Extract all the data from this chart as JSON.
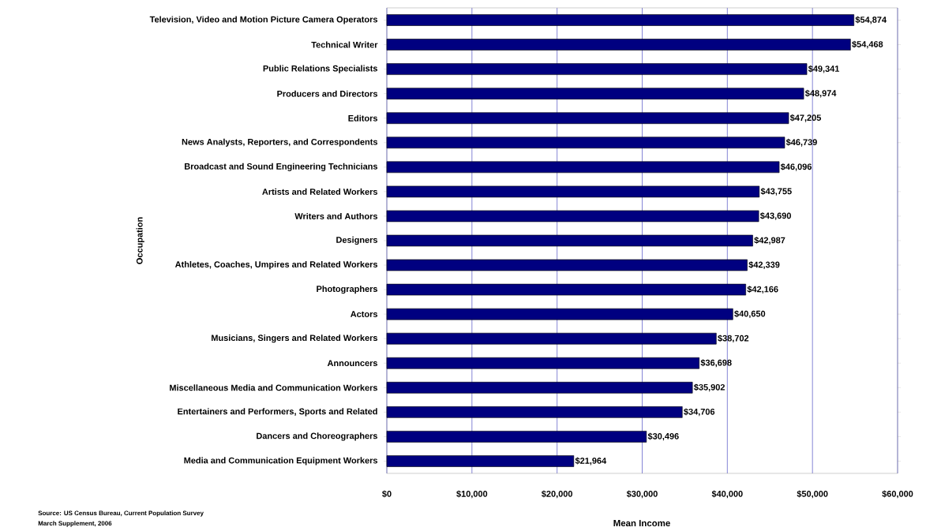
{
  "chart_data": {
    "type": "bar",
    "orientation": "horizontal",
    "xlabel": "Mean Income",
    "ylabel": "Occupation",
    "categories": [
      "Television, Video and Motion Picture Camera Operators",
      "Technical Writer",
      "Public Relations Specialists",
      "Producers and Directors",
      "Editors",
      "News Analysts, Reporters, and Correspondents",
      "Broadcast and Sound Engineering Technicians",
      "Artists and Related Workers",
      "Writers and Authors",
      "Designers",
      "Athletes, Coaches, Umpires and Related Workers",
      "Photographers",
      "Actors",
      "Musicians, Singers and Related Workers",
      "Announcers",
      "Miscellaneous Media and Communication Workers",
      "Entertainers and Performers, Sports and Related",
      "Dancers and Choreographers",
      "Media and Communication Equipment Workers"
    ],
    "values": [
      54874,
      54468,
      49341,
      48974,
      47205,
      46739,
      46096,
      43755,
      43690,
      42987,
      42339,
      42166,
      40650,
      38702,
      36698,
      35902,
      34706,
      30496,
      21964
    ],
    "value_labels": [
      "$54,874",
      "$54,468",
      "$49,341",
      "$48,974",
      "$47,205",
      "$46,739",
      "$46,096",
      "$43,755",
      "$43,690",
      "$42,987",
      "$42,339",
      "$42,166",
      "$40,650",
      "$38,702",
      "$36,698",
      "$35,902",
      "$34,706",
      "$30,496",
      "$21,964"
    ],
    "color": "#000080",
    "xlim": [
      0,
      60000
    ],
    "xticks": [
      {
        "value": 0,
        "label": "$0"
      },
      {
        "value": 10000,
        "label": "$10,000"
      },
      {
        "value": 20000,
        "label": "$20,000"
      },
      {
        "value": 30000,
        "label": "$30,000"
      },
      {
        "value": 40000,
        "label": "$40,000"
      },
      {
        "value": 50000,
        "label": "$50,000"
      },
      {
        "value": 60000,
        "label": "$60,000"
      }
    ],
    "grid": "x",
    "annotations": [
      "Source: US Census Bureau, Current Population Survey",
      "March Supplement, 2006"
    ]
  }
}
